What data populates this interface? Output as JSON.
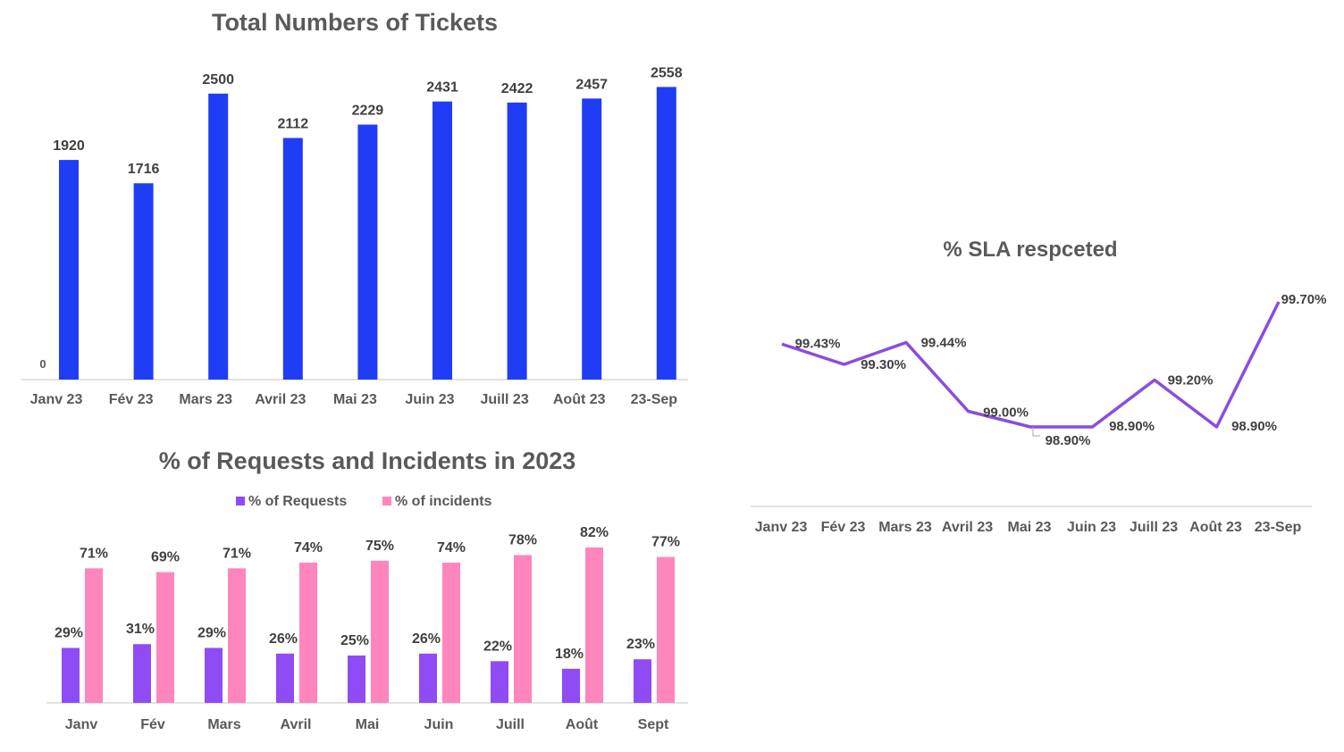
{
  "chart_data": [
    {
      "type": "bar",
      "title": "Total Numbers of Tickets",
      "categories": [
        "Janv 23",
        "Fév 23",
        "Mars 23",
        "Avril 23",
        "Mai 23",
        "Juin 23",
        "Juill 23",
        "Août 23",
        "23-Sep"
      ],
      "values": [
        1920,
        1716,
        2500,
        2112,
        2229,
        2431,
        2422,
        2457,
        2558
      ],
      "data_labels": [
        "1920",
        "1716",
        "2500",
        "2112",
        "2229",
        "2431",
        "2422",
        "2457",
        "2558"
      ],
      "y_tick_labels": [
        "0"
      ],
      "ylim": [
        0,
        2600
      ],
      "grid": false,
      "color": "#1f3df5"
    },
    {
      "type": "line",
      "title": "% SLA respceted",
      "categories": [
        "Janv 23",
        "Fév 23",
        "Mars 23",
        "Avril 23",
        "Mai 23",
        "Juin 23",
        "Juill 23",
        "Août 23",
        "23-Sep"
      ],
      "values": [
        99.43,
        99.3,
        99.44,
        99.0,
        98.9,
        98.9,
        99.2,
        98.9,
        99.7
      ],
      "data_labels": [
        "99.43%",
        "99.30%",
        "99.44%",
        "99.00%",
        "98.90%",
        "98.90%",
        "99.20%",
        "98.90%",
        "99.70%"
      ],
      "ylim": [
        98.6,
        99.8
      ],
      "grid": false,
      "color": "#8a4ddb"
    },
    {
      "type": "bar",
      "title": "% of Requests and Incidents in 2023",
      "categories": [
        "Janv",
        "Fév",
        "Mars",
        "Avril",
        "Mai",
        "Juin",
        "Juill",
        "Août",
        "Sept"
      ],
      "series": [
        {
          "name": "% of Requests",
          "values": [
            29,
            31,
            29,
            26,
            25,
            26,
            22,
            18,
            23
          ],
          "data_labels": [
            "29%",
            "31%",
            "29%",
            "26%",
            "25%",
            "26%",
            "22%",
            "18%",
            "23%"
          ],
          "color": "#8f4cf5"
        },
        {
          "name": "% of incidents",
          "values": [
            71,
            69,
            71,
            74,
            75,
            74,
            78,
            82,
            77
          ],
          "data_labels": [
            "71%",
            "69%",
            "71%",
            "74%",
            "75%",
            "74%",
            "78%",
            "82%",
            "77%"
          ],
          "color": "#ff85bd"
        }
      ],
      "ylim": [
        0,
        100
      ],
      "legend": "top",
      "grid": false
    }
  ]
}
